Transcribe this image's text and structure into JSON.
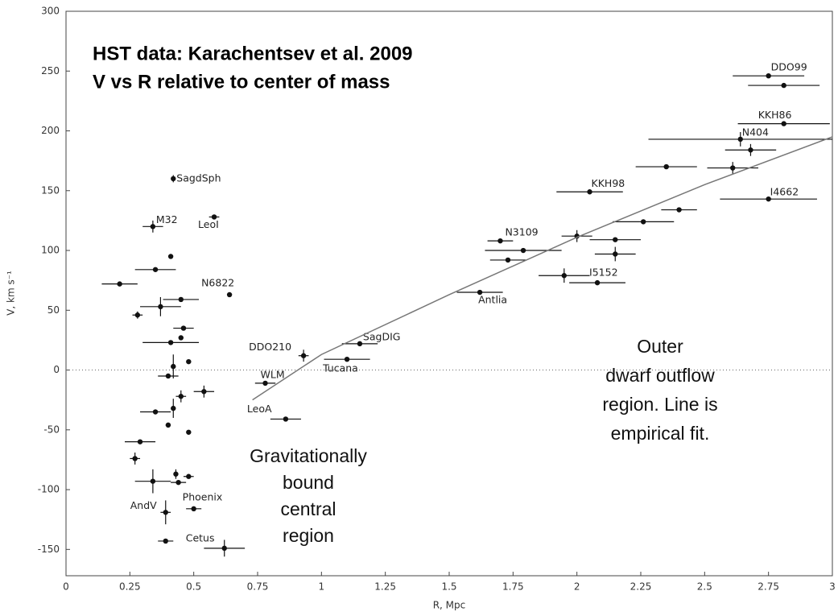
{
  "chart_data": {
    "type": "scatter",
    "title": [
      "HST data: Karachentsev et al. 2009",
      "V vs R  relative to center of mass"
    ],
    "xlabel": "R, Mpc",
    "ylabel": "V, km s⁻¹",
    "xlim": [
      0,
      3
    ],
    "ylim": [
      -172,
      300
    ],
    "xticks": [
      0,
      0.25,
      0.5,
      0.75,
      1,
      1.25,
      1.5,
      1.75,
      2,
      2.25,
      2.5,
      2.75,
      3
    ],
    "yticks": [
      -150,
      -100,
      -50,
      0,
      50,
      100,
      150,
      200,
      250,
      300
    ],
    "zero_line": 0,
    "annotations": [
      [
        "Gravitationally",
        "bound",
        "central",
        "region"
      ],
      [
        "Outer",
        "dwarf outflow",
        "region. Line is",
        "empirical fit."
      ]
    ],
    "series": [
      {
        "type": "scatter",
        "color": "#111",
        "x": [
          0.42,
          0.34,
          0.58,
          0.41,
          0.35,
          0.21,
          0.64,
          0.45,
          0.37,
          0.28,
          0.46,
          0.45,
          0.41,
          0.48,
          0.42,
          0.4,
          0.45,
          0.54,
          0.42,
          0.35,
          0.4,
          0.48,
          0.29,
          0.27,
          0.34,
          0.43,
          0.44,
          0.48,
          0.5,
          0.39,
          0.39,
          0.62,
          0.93,
          0.78,
          0.86,
          1.15,
          1.1,
          1.62,
          1.7,
          1.79,
          1.73,
          2.05,
          2.0,
          1.95,
          2.08,
          2.15,
          2.15,
          2.26,
          2.4,
          2.35,
          2.61,
          2.75,
          2.68,
          2.64,
          2.81,
          2.75,
          2.81
        ],
        "values": [
          160,
          120,
          128,
          95,
          84,
          72,
          63,
          59,
          53,
          46,
          35,
          27,
          23,
          7,
          3,
          -5,
          -22,
          -18,
          -32,
          -35,
          -46,
          -52,
          -60,
          -74,
          -93,
          -87,
          -94,
          -89,
          -116,
          -119,
          -143,
          -149,
          12,
          -11,
          -41,
          22,
          9,
          65,
          108,
          100,
          92,
          149,
          112,
          79,
          73,
          109,
          97,
          124,
          134,
          170,
          169,
          143,
          184,
          193,
          206,
          246,
          238
        ],
        "xerr": [
          null,
          0.04,
          0.02,
          null,
          0.08,
          0.07,
          null,
          0.07,
          0.08,
          0.02,
          0.04,
          null,
          0.11,
          null,
          null,
          0.04,
          0.02,
          0.04,
          null,
          0.06,
          0.01,
          null,
          0.06,
          0.02,
          0.07,
          null,
          0.03,
          0.02,
          0.03,
          0.02,
          0.03,
          0.08,
          0.02,
          0.04,
          0.06,
          0.07,
          0.09,
          0.09,
          0.05,
          0.15,
          0.07,
          0.13,
          0.06,
          0.1,
          0.11,
          0.1,
          0.08,
          0.12,
          0.07,
          0.12,
          0.1,
          0.19,
          0.1,
          0.36,
          0.18,
          0.14,
          0.14
        ],
        "yerr": [
          3,
          5,
          null,
          null,
          null,
          null,
          null,
          null,
          8,
          3,
          null,
          null,
          null,
          null,
          10,
          null,
          5,
          5,
          8,
          null,
          null,
          null,
          null,
          5,
          10,
          4,
          null,
          null,
          null,
          10,
          null,
          7,
          5,
          null,
          null,
          null,
          null,
          null,
          null,
          null,
          null,
          null,
          5,
          6,
          null,
          null,
          6,
          null,
          null,
          null,
          5,
          null,
          5,
          6,
          null,
          null,
          null
        ],
        "labels": [
          "SagdSph",
          "M32",
          "LeoI",
          null,
          null,
          null,
          "N6822",
          null,
          null,
          null,
          null,
          null,
          null,
          null,
          null,
          null,
          null,
          null,
          null,
          null,
          null,
          null,
          null,
          null,
          null,
          null,
          null,
          null,
          "Phoenix",
          "AndV",
          null,
          "Cetus",
          "DDO210",
          "WLM",
          "LeoA",
          "SagDIG",
          "Tucana",
          "Antlia",
          "N3109",
          null,
          null,
          "KKH98",
          null,
          null,
          "I5152",
          null,
          null,
          null,
          null,
          null,
          null,
          "I4662",
          null,
          "N404",
          "KKH86",
          "DDO99",
          null
        ]
      },
      {
        "type": "line",
        "color": "#777",
        "x": [
          0.73,
          1.0,
          1.5,
          2.0,
          2.5,
          3.0
        ],
        "values": [
          -25,
          13,
          63,
          111,
          155,
          195
        ]
      }
    ]
  }
}
